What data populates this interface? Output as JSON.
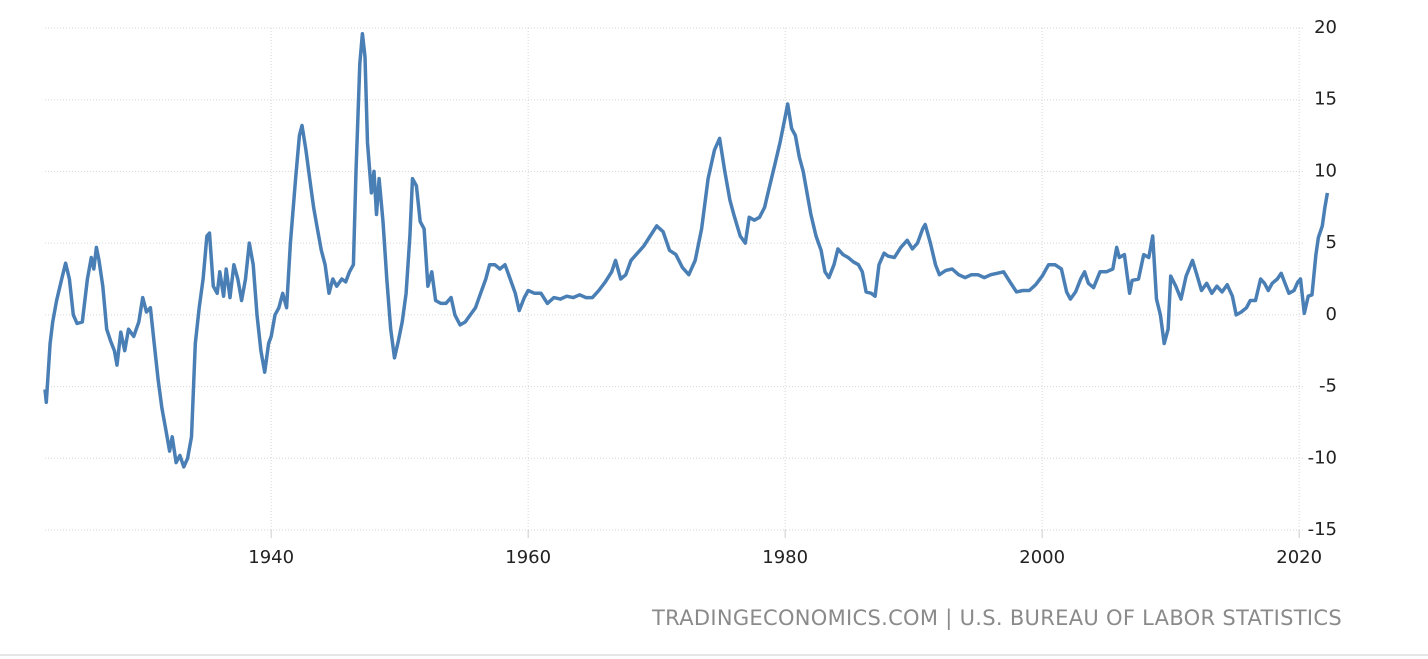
{
  "chart_data": {
    "type": "line",
    "source": "TRADINGECONOMICS.COM | U.S. BUREAU OF LABOR STATISTICS",
    "color": "#4a7fb5",
    "grid": true,
    "xlim": [
      1922.4,
      2024.5
    ],
    "ylim": [
      -15,
      20
    ],
    "xticks": [
      1940,
      1960,
      1980,
      2000,
      2020
    ],
    "yticks": [
      20,
      15,
      10,
      5,
      0,
      -5,
      -10,
      -15
    ],
    "x": [
      1922.4,
      1922.5,
      1922.8,
      1923.0,
      1923.3,
      1923.7,
      1924.0,
      1924.3,
      1924.6,
      1924.9,
      1925.3,
      1925.7,
      1926.0,
      1926.2,
      1926.4,
      1926.6,
      1926.9,
      1927.2,
      1927.5,
      1927.8,
      1928.0,
      1928.3,
      1928.6,
      1928.9,
      1929.3,
      1929.7,
      1930.0,
      1930.3,
      1930.6,
      1930.9,
      1931.2,
      1931.5,
      1931.8,
      1932.1,
      1932.3,
      1932.6,
      1932.9,
      1933.2,
      1933.5,
      1933.8,
      1934.1,
      1934.4,
      1934.7,
      1935.0,
      1935.2,
      1935.5,
      1935.8,
      1936.0,
      1936.3,
      1936.5,
      1936.8,
      1937.1,
      1937.4,
      1937.7,
      1938.0,
      1938.3,
      1938.6,
      1938.9,
      1939.2,
      1939.5,
      1939.8,
      1940.0,
      1940.3,
      1940.6,
      1940.9,
      1941.2,
      1941.5,
      1941.9,
      1942.2,
      1942.4,
      1942.7,
      1943.0,
      1943.3,
      1943.6,
      1943.9,
      1944.2,
      1944.5,
      1944.8,
      1945.1,
      1945.5,
      1945.8,
      1946.1,
      1946.4,
      1946.6,
      1946.9,
      1947.1,
      1947.3,
      1947.5,
      1947.8,
      1948.0,
      1948.2,
      1948.4,
      1948.7,
      1949.0,
      1949.3,
      1949.6,
      1949.9,
      1950.2,
      1950.5,
      1950.8,
      1951.0,
      1951.3,
      1951.6,
      1951.9,
      1952.2,
      1952.5,
      1952.8,
      1953.2,
      1953.6,
      1954.0,
      1954.3,
      1954.7,
      1955.1,
      1955.5,
      1955.9,
      1956.3,
      1956.7,
      1957.0,
      1957.4,
      1957.8,
      1958.2,
      1958.6,
      1959.0,
      1959.3,
      1959.7,
      1960.0,
      1960.5,
      1961.0,
      1961.5,
      1962.0,
      1962.5,
      1963.0,
      1963.5,
      1964.0,
      1964.5,
      1965.0,
      1965.5,
      1966.0,
      1966.5,
      1966.8,
      1967.2,
      1967.6,
      1968.0,
      1968.5,
      1969.0,
      1969.5,
      1970.0,
      1970.5,
      1971.0,
      1971.5,
      1972.0,
      1972.5,
      1973.0,
      1973.5,
      1974.0,
      1974.5,
      1974.9,
      1975.3,
      1975.7,
      1976.0,
      1976.5,
      1976.9,
      1977.2,
      1977.6,
      1978.0,
      1978.4,
      1978.8,
      1979.2,
      1979.6,
      1980.0,
      1980.2,
      1980.5,
      1980.8,
      1981.1,
      1981.4,
      1981.8,
      1982.0,
      1982.4,
      1982.8,
      1983.1,
      1983.4,
      1983.8,
      1984.1,
      1984.5,
      1984.9,
      1985.3,
      1985.7,
      1986.0,
      1986.3,
      1986.7,
      1987.0,
      1987.3,
      1987.7,
      1988.0,
      1988.5,
      1989.0,
      1989.5,
      1989.9,
      1990.3,
      1990.7,
      1990.9,
      1991.3,
      1991.7,
      1992.0,
      1992.5,
      1993.0,
      1993.5,
      1994.0,
      1994.5,
      1995.0,
      1995.5,
      1996.0,
      1996.5,
      1997.0,
      1997.5,
      1998.0,
      1998.5,
      1999.0,
      1999.5,
      2000.0,
      2000.5,
      2001.0,
      2001.5,
      2001.9,
      2002.2,
      2002.6,
      2003.0,
      2003.3,
      2003.6,
      2004.0,
      2004.5,
      2005.0,
      2005.5,
      2005.8,
      2006.0,
      2006.4,
      2006.8,
      2007.0,
      2007.5,
      2007.9,
      2008.3,
      2008.6,
      2008.9,
      2009.2,
      2009.5,
      2009.8,
      2010.0,
      2010.4,
      2010.8,
      2011.2,
      2011.7,
      2012.0,
      2012.4,
      2012.8,
      2013.2,
      2013.6,
      2014.0,
      2014.4,
      2014.8,
      2015.1,
      2015.5,
      2015.9,
      2016.2,
      2016.6,
      2017.0,
      2017.3,
      2017.6,
      2017.9,
      2018.3,
      2018.6,
      2018.9,
      2019.2,
      2019.6,
      2019.9,
      2020.1,
      2020.4,
      2020.7,
      2021.0,
      2021.3,
      2021.5,
      2021.8,
      2022.0,
      2022.2
    ],
    "values": [
      -5.2,
      -6.1,
      -2,
      -0.5,
      1,
      2.5,
      3.6,
      2.5,
      0,
      -0.6,
      -0.5,
      2.5,
      4.0,
      3.2,
      4.7,
      3.8,
      2,
      -1,
      -1.8,
      -2.5,
      -3.5,
      -1.2,
      -2.5,
      -1,
      -1.5,
      -0.5,
      1.2,
      0.2,
      0.5,
      -2,
      -4.5,
      -6.5,
      -8,
      -9.5,
      -8.5,
      -10.3,
      -9.8,
      -10.6,
      -10,
      -8.5,
      -2,
      0.5,
      2.5,
      5.5,
      5.7,
      2,
      1.5,
      3,
      1.3,
      3.2,
      1.2,
      3.5,
      2.5,
      1,
      2.5,
      5,
      3.5,
      0,
      -2.5,
      -4,
      -2,
      -1.5,
      0,
      0.5,
      1.5,
      0.5,
      5,
      9.5,
      12.5,
      13.2,
      11.5,
      9.5,
      7.5,
      6,
      4.5,
      3.5,
      1.5,
      2.5,
      2,
      2.5,
      2.3,
      3,
      3.5,
      10,
      17.5,
      19.6,
      18,
      12,
      8.5,
      10,
      7,
      9.5,
      6.5,
      2.5,
      -1,
      -3,
      -1.8,
      -0.5,
      1.5,
      5.5,
      9.5,
      9,
      6.5,
      6,
      2,
      3,
      1,
      0.8,
      0.8,
      1.2,
      0,
      -0.7,
      -0.5,
      0,
      0.5,
      1.5,
      2.5,
      3.5,
      3.5,
      3.2,
      3.5,
      2.5,
      1.5,
      0.3,
      1.2,
      1.7,
      1.5,
      1.5,
      0.8,
      1.2,
      1.1,
      1.3,
      1.2,
      1.4,
      1.2,
      1.2,
      1.7,
      2.3,
      3,
      3.8,
      2.5,
      2.8,
      3.8,
      4.3,
      4.8,
      5.5,
      6.2,
      5.8,
      4.5,
      4.2,
      3.3,
      2.8,
      3.8,
      6,
      9.5,
      11.5,
      12.3,
      10,
      8,
      7,
      5.5,
      5,
      6.8,
      6.6,
      6.8,
      7.5,
      9,
      10.5,
      12,
      13.8,
      14.7,
      13,
      12.5,
      11,
      10,
      8,
      7,
      5.5,
      4.5,
      3,
      2.6,
      3.5,
      4.6,
      4.2,
      4,
      3.7,
      3.5,
      3,
      1.6,
      1.5,
      1.3,
      3.5,
      4.3,
      4.1,
      4,
      4.7,
      5.2,
      4.6,
      5,
      6,
      6.3,
      5,
      3.5,
      2.8,
      3.1,
      3.2,
      2.8,
      2.6,
      2.8,
      2.8,
      2.6,
      2.8,
      2.9,
      3,
      2.3,
      1.6,
      1.7,
      1.7,
      2.1,
      2.7,
      3.5,
      3.5,
      3.2,
      1.6,
      1.1,
      1.6,
      2.5,
      3,
      2.2,
      1.9,
      3,
      3,
      3.2,
      4.7,
      4,
      4.2,
      1.5,
      2.4,
      2.5,
      4.2,
      4,
      5.5,
      1.1,
      0,
      -2,
      -1,
      2.7,
      2,
      1.1,
      2.7,
      3.8,
      2.9,
      1.7,
      2.2,
      1.5,
      2,
      1.6,
      2.1,
      1.3,
      0,
      0.2,
      0.5,
      1,
      1,
      2.5,
      2.2,
      1.7,
      2.2,
      2.5,
      2.9,
      2.2,
      1.5,
      1.7,
      2.3,
      2.5,
      0.1,
      1.3,
      1.4,
      4.2,
      5.4,
      6.2,
      7.5,
      8.5
    ]
  }
}
